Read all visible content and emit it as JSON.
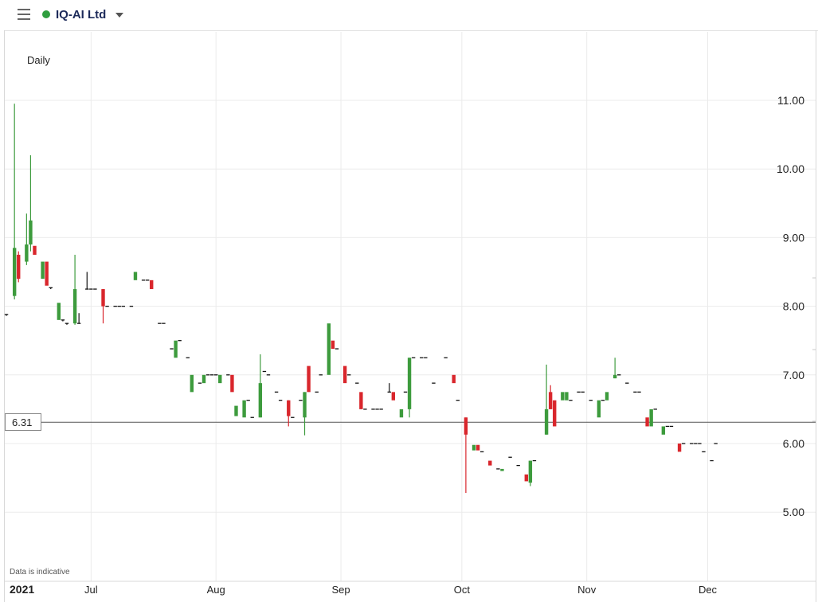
{
  "header": {
    "title": "IQ-AI Ltd",
    "status_color": "#2f9e3f",
    "menu_icon": "hamburger-menu-icon",
    "dropdown_icon": "caret-down-icon"
  },
  "chart_data": {
    "type": "candlestick",
    "interval": "Daily",
    "year_label": "2021",
    "disclaimer": "Data is indicative",
    "last_price": "6.31",
    "last_price_value": 6.31,
    "y_ticks": [
      "11.00",
      "10.00",
      "9.00",
      "8.00",
      "7.00",
      "6.00",
      "5.00"
    ],
    "y_tick_values": [
      11,
      10,
      9,
      8,
      7,
      6,
      5
    ],
    "ylim": [
      4.05,
      11.5
    ],
    "x_ticks": [
      {
        "label": "Jul",
        "day": 22
      },
      {
        "label": "Aug",
        "day": 53
      },
      {
        "label": "Sep",
        "day": 84
      },
      {
        "label": "Oct",
        "day": 114
      },
      {
        "label": "Nov",
        "day": 145
      },
      {
        "label": "Dec",
        "day": 175
      }
    ],
    "xlim": [
      0,
      202
    ],
    "colors": {
      "up": "#3d9b3d",
      "down": "#d9262c",
      "flat": "#111111"
    },
    "candles": [
      {
        "d": 1,
        "o": 7.88,
        "h": 7.88,
        "l": 7.86,
        "c": 7.88
      },
      {
        "d": 3,
        "o": 8.15,
        "h": 10.95,
        "l": 8.1,
        "c": 8.85
      },
      {
        "d": 4,
        "o": 8.75,
        "h": 8.8,
        "l": 8.35,
        "c": 8.4
      },
      {
        "d": 6,
        "o": 8.65,
        "h": 9.35,
        "l": 8.6,
        "c": 8.9
      },
      {
        "d": 7,
        "o": 8.9,
        "h": 10.2,
        "l": 8.8,
        "c": 9.25
      },
      {
        "d": 8,
        "o": 8.88,
        "h": 8.88,
        "l": 8.75,
        "c": 8.75
      },
      {
        "d": 10,
        "o": 8.4,
        "h": 8.6,
        "l": 8.4,
        "c": 8.65
      },
      {
        "d": 11,
        "o": 8.65,
        "h": 8.65,
        "l": 8.3,
        "c": 8.3
      },
      {
        "d": 12,
        "o": 8.27,
        "h": 8.27,
        "l": 8.25,
        "c": 8.27
      },
      {
        "d": 14,
        "o": 7.8,
        "h": 8.05,
        "l": 7.8,
        "c": 8.05
      },
      {
        "d": 15,
        "o": 7.8,
        "h": 7.8,
        "l": 7.78,
        "c": 7.8
      },
      {
        "d": 16,
        "o": 7.75,
        "h": 7.75,
        "l": 7.73,
        "c": 7.75
      },
      {
        "d": 18,
        "o": 7.75,
        "h": 8.75,
        "l": 7.73,
        "c": 8.25
      },
      {
        "d": 19,
        "o": 7.75,
        "h": 7.9,
        "l": 7.75,
        "c": 7.75
      },
      {
        "d": 21,
        "o": 8.25,
        "h": 8.5,
        "l": 8.25,
        "c": 8.25
      },
      {
        "d": 22,
        "o": 8.25,
        "h": 8.25,
        "l": 8.25,
        "c": 8.25
      },
      {
        "d": 23,
        "o": 8.25,
        "h": 8.25,
        "l": 8.25,
        "c": 8.25
      },
      {
        "d": 25,
        "o": 8.25,
        "h": 8.25,
        "l": 7.75,
        "c": 8.0
      },
      {
        "d": 26,
        "o": 8.0,
        "h": 8.0,
        "l": 8.0,
        "c": 8.0
      },
      {
        "d": 28,
        "o": 8.0,
        "h": 8.0,
        "l": 8.0,
        "c": 8.0
      },
      {
        "d": 29,
        "o": 8.0,
        "h": 8.0,
        "l": 8.0,
        "c": 8.0
      },
      {
        "d": 30,
        "o": 8.0,
        "h": 8.0,
        "l": 8.0,
        "c": 8.0
      },
      {
        "d": 32,
        "o": 8.0,
        "h": 8.0,
        "l": 8.0,
        "c": 8.0
      },
      {
        "d": 33,
        "o": 8.38,
        "h": 8.5,
        "l": 8.38,
        "c": 8.5
      },
      {
        "d": 35,
        "o": 8.38,
        "h": 8.38,
        "l": 8.38,
        "c": 8.38
      },
      {
        "d": 36,
        "o": 8.38,
        "h": 8.38,
        "l": 8.38,
        "c": 8.38
      },
      {
        "d": 37,
        "o": 8.38,
        "h": 8.38,
        "l": 8.25,
        "c": 8.25
      },
      {
        "d": 39,
        "o": 7.75,
        "h": 7.75,
        "l": 7.75,
        "c": 7.75
      },
      {
        "d": 40,
        "o": 7.75,
        "h": 7.75,
        "l": 7.75,
        "c": 7.75
      },
      {
        "d": 42,
        "o": 7.38,
        "h": 7.38,
        "l": 7.38,
        "c": 7.38
      },
      {
        "d": 43,
        "o": 7.25,
        "h": 7.5,
        "l": 7.25,
        "c": 7.5
      },
      {
        "d": 44,
        "o": 7.5,
        "h": 7.5,
        "l": 7.5,
        "c": 7.5
      },
      {
        "d": 46,
        "o": 7.25,
        "h": 7.25,
        "l": 7.25,
        "c": 7.25
      },
      {
        "d": 47,
        "o": 6.75,
        "h": 7.0,
        "l": 6.75,
        "c": 7.0
      },
      {
        "d": 49,
        "o": 6.88,
        "h": 6.88,
        "l": 6.88,
        "c": 6.88
      },
      {
        "d": 50,
        "o": 6.88,
        "h": 7.0,
        "l": 6.88,
        "c": 7.0
      },
      {
        "d": 51,
        "o": 7.0,
        "h": 7.0,
        "l": 7.0,
        "c": 7.0
      },
      {
        "d": 52,
        "o": 7.0,
        "h": 7.0,
        "l": 7.0,
        "c": 7.0
      },
      {
        "d": 53,
        "o": 7.0,
        "h": 7.0,
        "l": 7.0,
        "c": 7.0
      },
      {
        "d": 54,
        "o": 6.88,
        "h": 7.0,
        "l": 6.88,
        "c": 7.0
      },
      {
        "d": 56,
        "o": 7.0,
        "h": 7.0,
        "l": 7.0,
        "c": 7.0
      },
      {
        "d": 57,
        "o": 7.0,
        "h": 7.0,
        "l": 6.75,
        "c": 6.75
      },
      {
        "d": 58,
        "o": 6.4,
        "h": 6.55,
        "l": 6.4,
        "c": 6.55
      },
      {
        "d": 60,
        "o": 6.38,
        "h": 6.63,
        "l": 6.38,
        "c": 6.63
      },
      {
        "d": 61,
        "o": 6.63,
        "h": 6.63,
        "l": 6.63,
        "c": 6.63
      },
      {
        "d": 62,
        "o": 6.38,
        "h": 6.38,
        "l": 6.38,
        "c": 6.38
      },
      {
        "d": 64,
        "o": 6.38,
        "h": 7.3,
        "l": 6.38,
        "c": 6.88
      },
      {
        "d": 65,
        "o": 7.05,
        "h": 7.05,
        "l": 7.05,
        "c": 7.05
      },
      {
        "d": 66,
        "o": 7.0,
        "h": 7.0,
        "l": 7.0,
        "c": 7.0
      },
      {
        "d": 68,
        "o": 6.75,
        "h": 6.75,
        "l": 6.75,
        "c": 6.75
      },
      {
        "d": 69,
        "o": 6.63,
        "h": 6.63,
        "l": 6.63,
        "c": 6.63
      },
      {
        "d": 71,
        "o": 6.63,
        "h": 6.63,
        "l": 6.25,
        "c": 6.4
      },
      {
        "d": 72,
        "o": 6.38,
        "h": 6.38,
        "l": 6.38,
        "c": 6.38
      },
      {
        "d": 74,
        "o": 6.63,
        "h": 6.63,
        "l": 6.63,
        "c": 6.63
      },
      {
        "d": 75,
        "o": 6.38,
        "h": 6.75,
        "l": 6.12,
        "c": 6.75
      },
      {
        "d": 76,
        "o": 7.13,
        "h": 7.13,
        "l": 6.75,
        "c": 6.75
      },
      {
        "d": 78,
        "o": 6.75,
        "h": 6.75,
        "l": 6.75,
        "c": 6.75
      },
      {
        "d": 79,
        "o": 7.0,
        "h": 7.0,
        "l": 7.0,
        "c": 7.0
      },
      {
        "d": 81,
        "o": 7.0,
        "h": 7.75,
        "l": 7.0,
        "c": 7.75
      },
      {
        "d": 82,
        "o": 7.5,
        "h": 7.5,
        "l": 7.38,
        "c": 7.38
      },
      {
        "d": 83,
        "o": 7.38,
        "h": 7.38,
        "l": 7.38,
        "c": 7.38
      },
      {
        "d": 85,
        "o": 7.13,
        "h": 7.13,
        "l": 6.88,
        "c": 6.88
      },
      {
        "d": 86,
        "o": 7.0,
        "h": 7.0,
        "l": 7.0,
        "c": 7.0
      },
      {
        "d": 88,
        "o": 6.88,
        "h": 6.88,
        "l": 6.88,
        "c": 6.88
      },
      {
        "d": 89,
        "o": 6.75,
        "h": 6.75,
        "l": 6.5,
        "c": 6.5
      },
      {
        "d": 90,
        "o": 6.5,
        "h": 6.5,
        "l": 6.5,
        "c": 6.5
      },
      {
        "d": 92,
        "o": 6.5,
        "h": 6.5,
        "l": 6.5,
        "c": 6.5
      },
      {
        "d": 93,
        "o": 6.5,
        "h": 6.5,
        "l": 6.5,
        "c": 6.5
      },
      {
        "d": 94,
        "o": 6.5,
        "h": 6.5,
        "l": 6.5,
        "c": 6.5
      },
      {
        "d": 96,
        "o": 6.75,
        "h": 6.88,
        "l": 6.75,
        "c": 6.75
      },
      {
        "d": 97,
        "o": 6.75,
        "h": 6.75,
        "l": 6.63,
        "c": 6.63
      },
      {
        "d": 99,
        "o": 6.38,
        "h": 6.5,
        "l": 6.38,
        "c": 6.5
      },
      {
        "d": 100,
        "o": 6.75,
        "h": 6.75,
        "l": 6.75,
        "c": 6.75
      },
      {
        "d": 101,
        "o": 6.5,
        "h": 7.25,
        "l": 6.38,
        "c": 7.25
      },
      {
        "d": 102,
        "o": 7.25,
        "h": 7.25,
        "l": 7.25,
        "c": 7.25
      },
      {
        "d": 104,
        "o": 7.25,
        "h": 7.25,
        "l": 7.25,
        "c": 7.25
      },
      {
        "d": 105,
        "o": 7.25,
        "h": 7.25,
        "l": 7.25,
        "c": 7.25
      },
      {
        "d": 107,
        "o": 6.88,
        "h": 6.88,
        "l": 6.88,
        "c": 6.88
      },
      {
        "d": 110,
        "o": 7.25,
        "h": 7.25,
        "l": 7.25,
        "c": 7.25
      },
      {
        "d": 112,
        "o": 7.0,
        "h": 7.0,
        "l": 6.88,
        "c": 6.88
      },
      {
        "d": 113,
        "o": 6.63,
        "h": 6.63,
        "l": 6.63,
        "c": 6.63
      },
      {
        "d": 115,
        "o": 6.38,
        "h": 6.38,
        "l": 5.28,
        "c": 6.13
      },
      {
        "d": 117,
        "o": 5.9,
        "h": 5.98,
        "l": 5.9,
        "c": 5.98
      },
      {
        "d": 118,
        "o": 5.98,
        "h": 5.98,
        "l": 5.9,
        "c": 5.9
      },
      {
        "d": 119,
        "o": 5.88,
        "h": 5.88,
        "l": 5.88,
        "c": 5.88
      },
      {
        "d": 121,
        "o": 5.75,
        "h": 5.75,
        "l": 5.68,
        "c": 5.68
      },
      {
        "d": 123,
        "o": 5.63,
        "h": 5.63,
        "l": 5.63,
        "c": 5.63
      },
      {
        "d": 124,
        "o": 5.6,
        "h": 5.63,
        "l": 5.6,
        "c": 5.63
      },
      {
        "d": 126,
        "o": 5.8,
        "h": 5.8,
        "l": 5.8,
        "c": 5.8
      },
      {
        "d": 128,
        "o": 5.68,
        "h": 5.68,
        "l": 5.68,
        "c": 5.68
      },
      {
        "d": 130,
        "o": 5.55,
        "h": 5.55,
        "l": 5.45,
        "c": 5.45
      },
      {
        "d": 131,
        "o": 5.43,
        "h": 5.75,
        "l": 5.38,
        "c": 5.75
      },
      {
        "d": 132,
        "o": 5.75,
        "h": 5.75,
        "l": 5.75,
        "c": 5.75
      },
      {
        "d": 135,
        "o": 6.13,
        "h": 7.15,
        "l": 6.13,
        "c": 6.5
      },
      {
        "d": 136,
        "o": 6.75,
        "h": 6.85,
        "l": 6.5,
        "c": 6.5
      },
      {
        "d": 137,
        "o": 6.63,
        "h": 6.63,
        "l": 6.25,
        "c": 6.25
      },
      {
        "d": 139,
        "o": 6.63,
        "h": 6.75,
        "l": 6.63,
        "c": 6.75
      },
      {
        "d": 140,
        "o": 6.63,
        "h": 6.75,
        "l": 6.63,
        "c": 6.75
      },
      {
        "d": 141,
        "o": 6.63,
        "h": 6.63,
        "l": 6.63,
        "c": 6.63
      },
      {
        "d": 143,
        "o": 6.75,
        "h": 6.75,
        "l": 6.75,
        "c": 6.75
      },
      {
        "d": 144,
        "o": 6.75,
        "h": 6.75,
        "l": 6.75,
        "c": 6.75
      },
      {
        "d": 146,
        "o": 6.63,
        "h": 6.63,
        "l": 6.63,
        "c": 6.63
      },
      {
        "d": 148,
        "o": 6.38,
        "h": 6.63,
        "l": 6.38,
        "c": 6.63
      },
      {
        "d": 149,
        "o": 6.63,
        "h": 6.63,
        "l": 6.63,
        "c": 6.63
      },
      {
        "d": 150,
        "o": 6.63,
        "h": 6.75,
        "l": 6.63,
        "c": 6.75
      },
      {
        "d": 152,
        "o": 6.95,
        "h": 7.25,
        "l": 6.95,
        "c": 7.0
      },
      {
        "d": 153,
        "o": 7.0,
        "h": 7.0,
        "l": 7.0,
        "c": 7.0
      },
      {
        "d": 155,
        "o": 6.88,
        "h": 6.88,
        "l": 6.88,
        "c": 6.88
      },
      {
        "d": 157,
        "o": 6.75,
        "h": 6.75,
        "l": 6.75,
        "c": 6.75
      },
      {
        "d": 158,
        "o": 6.75,
        "h": 6.75,
        "l": 6.75,
        "c": 6.75
      },
      {
        "d": 160,
        "o": 6.38,
        "h": 6.38,
        "l": 6.25,
        "c": 6.25
      },
      {
        "d": 161,
        "o": 6.25,
        "h": 6.5,
        "l": 6.25,
        "c": 6.5
      },
      {
        "d": 162,
        "o": 6.5,
        "h": 6.5,
        "l": 6.5,
        "c": 6.5
      },
      {
        "d": 164,
        "o": 6.13,
        "h": 6.25,
        "l": 6.13,
        "c": 6.25
      },
      {
        "d": 165,
        "o": 6.25,
        "h": 6.25,
        "l": 6.25,
        "c": 6.25
      },
      {
        "d": 166,
        "o": 6.25,
        "h": 6.25,
        "l": 6.25,
        "c": 6.25
      },
      {
        "d": 168,
        "o": 6.0,
        "h": 6.0,
        "l": 5.88,
        "c": 5.88
      },
      {
        "d": 169,
        "o": 6.0,
        "h": 6.0,
        "l": 6.0,
        "c": 6.0
      },
      {
        "d": 171,
        "o": 6.0,
        "h": 6.0,
        "l": 6.0,
        "c": 6.0
      },
      {
        "d": 172,
        "o": 6.0,
        "h": 6.0,
        "l": 6.0,
        "c": 6.0
      },
      {
        "d": 173,
        "o": 6.0,
        "h": 6.0,
        "l": 6.0,
        "c": 6.0
      },
      {
        "d": 174,
        "o": 5.88,
        "h": 5.88,
        "l": 5.88,
        "c": 5.88
      },
      {
        "d": 176,
        "o": 5.75,
        "h": 5.75,
        "l": 5.75,
        "c": 5.75
      },
      {
        "d": 177,
        "o": 6.0,
        "h": 6.0,
        "l": 6.0,
        "c": 6.0
      }
    ]
  }
}
